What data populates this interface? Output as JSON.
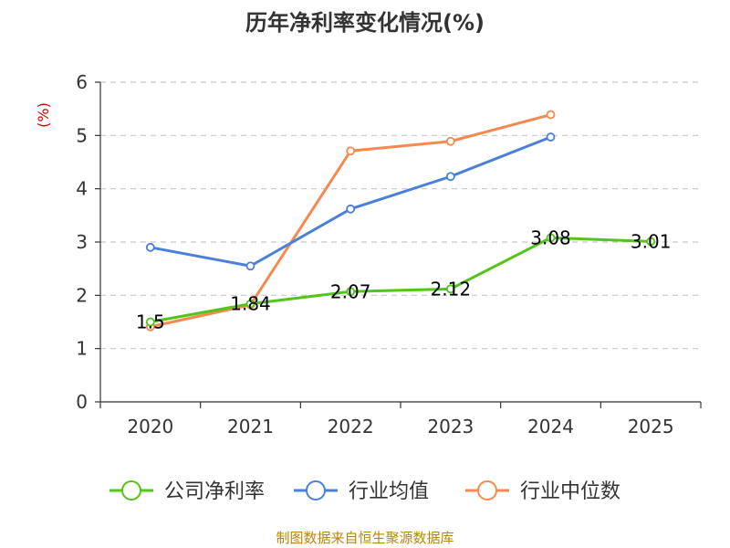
{
  "chart_data": {
    "type": "line",
    "title": "历年净利率变化情况(%)",
    "ylabel": "(%)",
    "xlabel": "",
    "categories": [
      "2020",
      "2021",
      "2022",
      "2023",
      "2024",
      "2025"
    ],
    "ylim": [
      0,
      6
    ],
    "yticks": [
      0,
      1,
      2,
      3,
      4,
      5,
      6
    ],
    "grid": true,
    "legend_position": "bottom",
    "series": [
      {
        "name": "公司净利率",
        "color": "#52c41a",
        "values": [
          1.5,
          1.84,
          2.07,
          2.12,
          3.08,
          3.01
        ],
        "labels": [
          "1.5",
          "1.84",
          "2.07",
          "2.12",
          "3.08",
          "3.01"
        ]
      },
      {
        "name": "行业均值",
        "color": "#4a7fdb",
        "values": [
          2.9,
          2.55,
          3.62,
          4.23,
          4.97,
          null
        ]
      },
      {
        "name": "行业中位数",
        "color": "#f5894f",
        "values": [
          1.41,
          1.82,
          4.71,
          4.89,
          5.39,
          null
        ]
      }
    ]
  },
  "source_text": "制图数据来自恒生聚源数据库"
}
